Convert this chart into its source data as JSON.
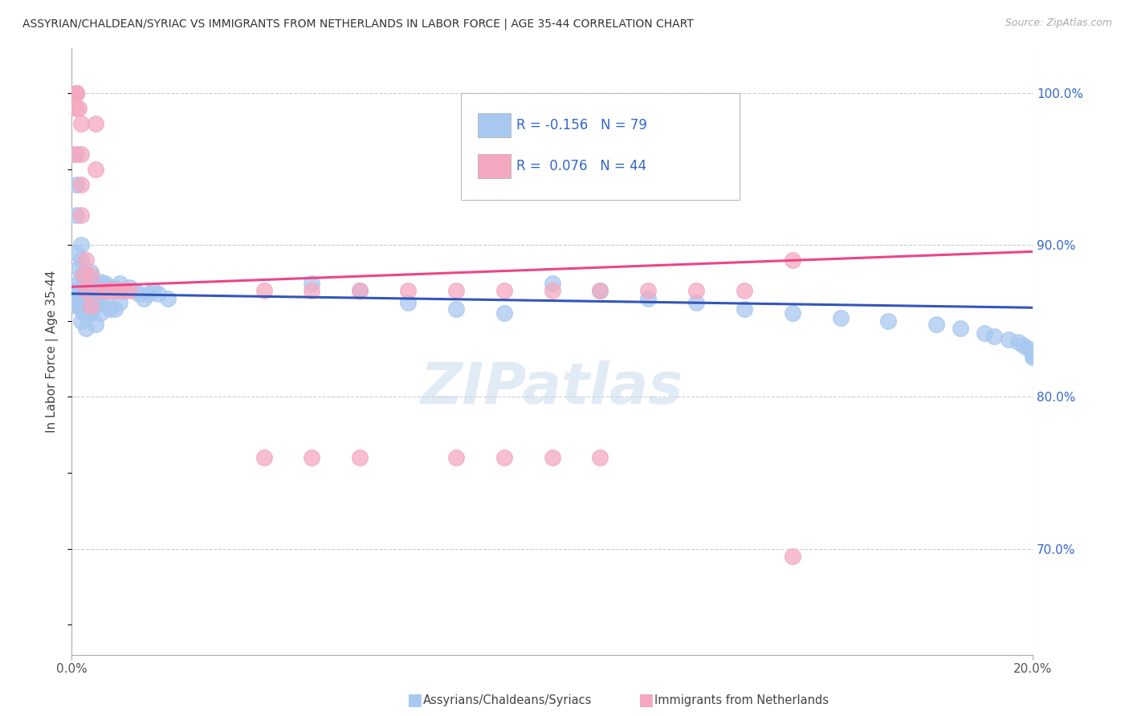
{
  "title": "ASSYRIAN/CHALDEAN/SYRIAC VS IMMIGRANTS FROM NETHERLANDS IN LABOR FORCE | AGE 35-44 CORRELATION CHART",
  "source": "Source: ZipAtlas.com",
  "ylabel": "In Labor Force | Age 35-44",
  "legend_label1": "Assyrians/Chaldeans/Syriacs",
  "legend_label2": "Immigrants from Netherlands",
  "R1": -0.156,
  "N1": 79,
  "R2": 0.076,
  "N2": 44,
  "color1": "#A8C8F0",
  "color2": "#F4A8C0",
  "trend_color1": "#3355BB",
  "trend_color2": "#EE4488",
  "watermark": "ZIPatlas",
  "xlim": [
    0.0,
    0.2
  ],
  "ylim": [
    0.63,
    1.03
  ],
  "yticks": [
    0.7,
    0.8,
    0.9,
    1.0
  ],
  "ytick_labels": [
    "70.0%",
    "80.0%",
    "90.0%",
    "100.0%"
  ],
  "xtick_labels": [
    "0.0%",
    "20.0%"
  ],
  "blue_x": [
    0.0005,
    0.0007,
    0.0008,
    0.001,
    0.001,
    0.001,
    0.001,
    0.001,
    0.0015,
    0.0015,
    0.0015,
    0.002,
    0.002,
    0.002,
    0.002,
    0.002,
    0.002,
    0.0025,
    0.0025,
    0.0025,
    0.003,
    0.003,
    0.003,
    0.003,
    0.003,
    0.0035,
    0.0035,
    0.004,
    0.004,
    0.004,
    0.004,
    0.005,
    0.005,
    0.005,
    0.005,
    0.006,
    0.006,
    0.006,
    0.007,
    0.007,
    0.008,
    0.008,
    0.009,
    0.009,
    0.01,
    0.01,
    0.011,
    0.012,
    0.013,
    0.014,
    0.015,
    0.016,
    0.017,
    0.018,
    0.02,
    0.05,
    0.06,
    0.07,
    0.08,
    0.09,
    0.1,
    0.11,
    0.12,
    0.13,
    0.14,
    0.15,
    0.16,
    0.17,
    0.18,
    0.185,
    0.19,
    0.192,
    0.195,
    0.197,
    0.198,
    0.199,
    0.2,
    0.2,
    0.2
  ],
  "blue_y": [
    0.87,
    0.865,
    0.86,
    0.96,
    0.94,
    0.92,
    0.895,
    0.87,
    0.885,
    0.875,
    0.86,
    0.9,
    0.89,
    0.88,
    0.87,
    0.86,
    0.85,
    0.88,
    0.87,
    0.855,
    0.88,
    0.875,
    0.865,
    0.855,
    0.845,
    0.878,
    0.862,
    0.882,
    0.875,
    0.865,
    0.855,
    0.875,
    0.868,
    0.86,
    0.848,
    0.876,
    0.865,
    0.855,
    0.875,
    0.862,
    0.872,
    0.858,
    0.872,
    0.858,
    0.875,
    0.862,
    0.87,
    0.872,
    0.87,
    0.868,
    0.865,
    0.868,
    0.87,
    0.868,
    0.865,
    0.875,
    0.87,
    0.862,
    0.858,
    0.855,
    0.875,
    0.87,
    0.865,
    0.862,
    0.858,
    0.855,
    0.852,
    0.85,
    0.848,
    0.845,
    0.842,
    0.84,
    0.838,
    0.836,
    0.834,
    0.832,
    0.83,
    0.828,
    0.826
  ],
  "pink_x": [
    0.0005,
    0.001,
    0.001,
    0.001,
    0.001,
    0.0015,
    0.002,
    0.002,
    0.002,
    0.002,
    0.0025,
    0.003,
    0.003,
    0.004,
    0.004,
    0.005,
    0.005,
    0.006,
    0.007,
    0.008,
    0.009,
    0.01,
    0.011,
    0.012,
    0.04,
    0.05,
    0.06,
    0.07,
    0.08,
    0.09,
    0.1,
    0.11,
    0.12,
    0.13,
    0.14,
    0.15,
    0.04,
    0.06,
    0.08,
    0.1,
    0.05,
    0.09,
    0.11,
    0.15
  ],
  "pink_y": [
    0.96,
    1.0,
    1.0,
    1.0,
    0.99,
    0.99,
    0.98,
    0.96,
    0.94,
    0.92,
    0.88,
    0.89,
    0.87,
    0.88,
    0.86,
    0.98,
    0.95,
    0.87,
    0.87,
    0.87,
    0.87,
    0.87,
    0.87,
    0.87,
    0.87,
    0.87,
    0.87,
    0.87,
    0.87,
    0.87,
    0.87,
    0.87,
    0.87,
    0.87,
    0.87,
    0.89,
    0.76,
    0.76,
    0.76,
    0.76,
    0.76,
    0.76,
    0.76,
    0.695
  ]
}
